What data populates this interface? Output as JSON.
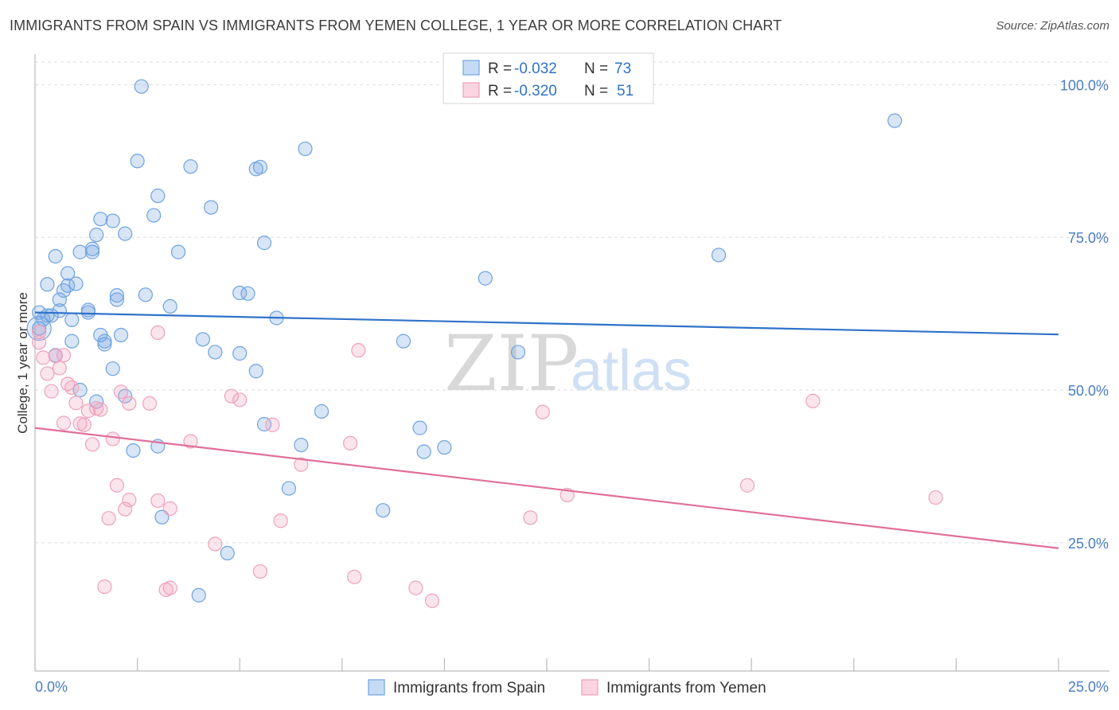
{
  "title": "IMMIGRANTS FROM SPAIN VS IMMIGRANTS FROM YEMEN COLLEGE, 1 YEAR OR MORE CORRELATION CHART",
  "source": "Source: ZipAtlas.com",
  "watermark": {
    "zip": "ZIP",
    "atlas": "atlas"
  },
  "colors": {
    "spain": "#6fa3e0",
    "spain_line": "#2f72c9",
    "yemen": "#f0a0bc",
    "yemen_line": "#e0709a",
    "tick_label": "#4a7cc4"
  },
  "legend_box": {
    "rows": [
      {
        "r_label": "R = ",
        "r_value": "-0.032",
        "n_label": "N = ",
        "n_value": "73"
      },
      {
        "r_label": "R = ",
        "r_value": "-0.320",
        "n_label": "N = ",
        "n_value": "51"
      }
    ]
  },
  "chart_data": {
    "type": "scatter",
    "title": "IMMIGRANTS FROM SPAIN VS IMMIGRANTS FROM YEMEN COLLEGE, 1 YEAR OR MORE CORRELATION CHART",
    "xlabel": "",
    "ylabel": "College, 1 year or more",
    "xlim": [
      0,
      25
    ],
    "ylim": [
      4,
      105
    ],
    "x_tick_labels": [
      "0.0%",
      "25.0%"
    ],
    "y_ticks": [
      25,
      50,
      75,
      100
    ],
    "y_tick_labels": [
      "25.0%",
      "50.0%",
      "75.0%",
      "100.0%"
    ],
    "grid": true,
    "legend_position": "bottom-center",
    "series": [
      {
        "name": "Immigrants from Spain",
        "color": "#6fa3e0",
        "trend": {
          "x": [
            0,
            25
          ],
          "y": [
            62.7,
            59.1
          ]
        },
        "points": [
          [
            0.1,
            60.1
          ],
          [
            0.2,
            61.6
          ],
          [
            0.3,
            67.3
          ],
          [
            0.4,
            62.2
          ],
          [
            0.5,
            71.9
          ],
          [
            0.5,
            55.7
          ],
          [
            0.6,
            64.8
          ],
          [
            0.6,
            63.0
          ],
          [
            0.7,
            66.3
          ],
          [
            0.8,
            67.1
          ],
          [
            0.8,
            69.1
          ],
          [
            0.9,
            61.5
          ],
          [
            0.9,
            58.0
          ],
          [
            1.0,
            67.4
          ],
          [
            1.1,
            72.6
          ],
          [
            1.3,
            63.1
          ],
          [
            1.3,
            62.7
          ],
          [
            1.4,
            73.1
          ],
          [
            1.4,
            72.6
          ],
          [
            1.5,
            48.1
          ],
          [
            1.5,
            75.4
          ],
          [
            1.6,
            78.0
          ],
          [
            1.6,
            59.0
          ],
          [
            1.7,
            57.5
          ],
          [
            1.7,
            58.0
          ],
          [
            1.9,
            53.5
          ],
          [
            1.9,
            77.7
          ],
          [
            2.0,
            64.8
          ],
          [
            2.0,
            65.5
          ],
          [
            2.2,
            75.6
          ],
          [
            2.2,
            49.0
          ],
          [
            2.4,
            40.1
          ],
          [
            2.5,
            87.5
          ],
          [
            2.6,
            99.7
          ],
          [
            2.7,
            65.6
          ],
          [
            2.9,
            78.6
          ],
          [
            3.0,
            81.8
          ],
          [
            3.0,
            40.8
          ],
          [
            3.1,
            29.2
          ],
          [
            3.3,
            63.7
          ],
          [
            3.5,
            72.6
          ],
          [
            3.8,
            86.6
          ],
          [
            4.0,
            16.4
          ],
          [
            4.1,
            58.3
          ],
          [
            4.3,
            79.9
          ],
          [
            4.4,
            56.2
          ],
          [
            4.7,
            23.3
          ],
          [
            5.0,
            56.0
          ],
          [
            5.0,
            65.9
          ],
          [
            5.2,
            65.8
          ],
          [
            5.4,
            86.2
          ],
          [
            5.5,
            86.5
          ],
          [
            5.6,
            44.4
          ],
          [
            5.6,
            74.1
          ],
          [
            5.9,
            61.8
          ],
          [
            6.2,
            33.9
          ],
          [
            6.5,
            41.0
          ],
          [
            6.6,
            89.5
          ],
          [
            7.0,
            46.5
          ],
          [
            8.5,
            30.3
          ],
          [
            9.4,
            43.8
          ],
          [
            9.5,
            39.9
          ],
          [
            10.0,
            40.6
          ],
          [
            11.0,
            68.3
          ],
          [
            11.8,
            56.2
          ],
          [
            16.7,
            72.1
          ],
          [
            21.0,
            94.1
          ],
          [
            0.3,
            62.2
          ],
          [
            0.1,
            62.7
          ],
          [
            1.1,
            50.0
          ],
          [
            2.1,
            59.0
          ],
          [
            5.4,
            53.1
          ],
          [
            9.0,
            58.0
          ]
        ]
      },
      {
        "name": "Immigrants from Yemen",
        "color": "#f0a0bc",
        "trend": {
          "x": [
            0,
            25
          ],
          "y": [
            43.8,
            24.1
          ]
        },
        "points": [
          [
            0.1,
            59.5
          ],
          [
            0.1,
            57.8
          ],
          [
            0.2,
            55.3
          ],
          [
            0.3,
            52.7
          ],
          [
            0.4,
            49.8
          ],
          [
            0.5,
            55.6
          ],
          [
            0.6,
            53.6
          ],
          [
            0.7,
            55.7
          ],
          [
            0.7,
            44.6
          ],
          [
            0.8,
            51.0
          ],
          [
            0.9,
            50.4
          ],
          [
            1.0,
            47.9
          ],
          [
            1.1,
            44.5
          ],
          [
            1.2,
            44.3
          ],
          [
            1.3,
            46.6
          ],
          [
            1.4,
            41.1
          ],
          [
            1.5,
            47.0
          ],
          [
            1.6,
            46.8
          ],
          [
            1.7,
            17.8
          ],
          [
            1.8,
            29.0
          ],
          [
            1.9,
            42.0
          ],
          [
            2.0,
            34.4
          ],
          [
            2.1,
            49.7
          ],
          [
            2.2,
            30.5
          ],
          [
            2.3,
            47.8
          ],
          [
            2.3,
            32.0
          ],
          [
            2.8,
            47.8
          ],
          [
            3.0,
            59.4
          ],
          [
            3.0,
            31.9
          ],
          [
            3.2,
            17.3
          ],
          [
            3.3,
            17.6
          ],
          [
            3.3,
            30.6
          ],
          [
            3.8,
            41.6
          ],
          [
            4.4,
            24.8
          ],
          [
            4.8,
            49.0
          ],
          [
            5.0,
            48.4
          ],
          [
            5.5,
            20.3
          ],
          [
            5.8,
            44.3
          ],
          [
            6.0,
            28.6
          ],
          [
            6.5,
            37.8
          ],
          [
            7.7,
            41.3
          ],
          [
            7.8,
            19.4
          ],
          [
            7.9,
            56.5
          ],
          [
            9.3,
            17.6
          ],
          [
            9.7,
            15.5
          ],
          [
            12.1,
            29.1
          ],
          [
            12.4,
            46.4
          ],
          [
            13.0,
            32.8
          ],
          [
            17.4,
            34.4
          ],
          [
            19.0,
            48.2
          ],
          [
            22.0,
            32.4
          ]
        ]
      }
    ]
  },
  "legend": {
    "items": [
      {
        "label": "Immigrants from Spain",
        "color": "#6fa3e0"
      },
      {
        "label": "Immigrants from Yemen",
        "color": "#f0a0bc"
      }
    ]
  }
}
